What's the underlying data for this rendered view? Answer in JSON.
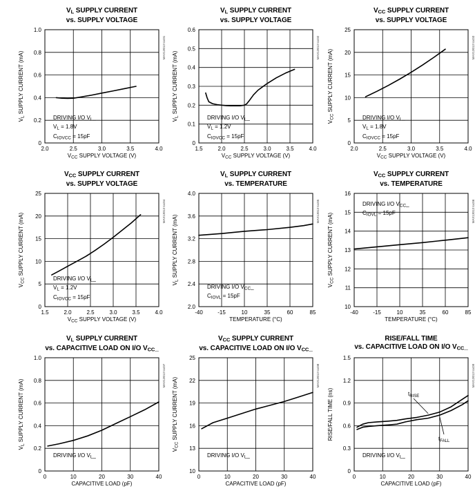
{
  "chart_data": [
    {
      "type": "line",
      "title": [
        "V_L SUPPLY CURRENT",
        "vs. SUPPLY VOLTAGE"
      ],
      "ylabel": "V_L SUPPLY CURRENT (mA)",
      "xlabel": "V_CC SUPPLY VOLTAGE (V)",
      "xlim": [
        2.0,
        4.0
      ],
      "ylim": [
        0,
        1.0
      ],
      "xticks": [
        "2.0",
        "2.5",
        "3.0",
        "3.5",
        "4.0"
      ],
      "yticks": [
        "0",
        "0.2",
        "0.4",
        "0.6",
        "0.8",
        "1.0"
      ],
      "annotation": [
        "DRIVING I/O V_L_",
        "V_L = 1.8V",
        "C_IOVCC = 15pF"
      ],
      "series": [
        {
          "x": [
            2.2,
            2.3,
            2.4,
            2.5,
            2.6,
            2.8,
            3.0,
            3.2,
            3.4,
            3.6
          ],
          "y": [
            0.4,
            0.395,
            0.393,
            0.395,
            0.403,
            0.42,
            0.44,
            0.46,
            0.48,
            0.5
          ],
          "labels": []
        }
      ]
    },
    {
      "type": "line",
      "title": [
        "V_L SUPPLY CURRENT",
        "vs. SUPPLY VOLTAGE"
      ],
      "ylabel": "V_L SUPPLY CURRENT (mA)",
      "xlabel": "V_CC SUPPLY VOLTAGE (V)",
      "xlim": [
        1.5,
        4.0
      ],
      "ylim": [
        0,
        0.6
      ],
      "xticks": [
        "1.5",
        "2.0",
        "2.5",
        "3.0",
        "3.5",
        "4.0"
      ],
      "yticks": [
        "0",
        "0.1",
        "0.2",
        "0.3",
        "0.4",
        "0.5",
        "0.6"
      ],
      "annotation": [
        "DRIVING I/O V_L_",
        "V_L = 1.2V",
        "C_IOVCC = 15pF"
      ],
      "series": [
        {
          "x": [
            1.65,
            1.68,
            1.72,
            1.8,
            1.9,
            2.0,
            2.1,
            2.2,
            2.3,
            2.4,
            2.5,
            2.55,
            2.6,
            2.7,
            2.8,
            3.0,
            3.2,
            3.4,
            3.6
          ],
          "y": [
            0.265,
            0.24,
            0.218,
            0.208,
            0.203,
            0.2,
            0.198,
            0.197,
            0.197,
            0.197,
            0.2,
            0.207,
            0.222,
            0.255,
            0.28,
            0.315,
            0.345,
            0.37,
            0.39
          ],
          "labels": []
        }
      ]
    },
    {
      "type": "line",
      "title": [
        "V_CC SUPPLY CURRENT",
        "vs. SUPPLY VOLTAGE"
      ],
      "ylabel": "V_CC SUPPLY CURRENT (mA)",
      "xlabel": "V_CC SUPPLY VOLTAGE (V)",
      "xlim": [
        2.0,
        4.0
      ],
      "ylim": [
        0,
        25
      ],
      "xticks": [
        "2.0",
        "2.5",
        "3.0",
        "3.5",
        "4.0"
      ],
      "yticks": [
        "0",
        "5",
        "10",
        "15",
        "20",
        "25"
      ],
      "annotation": [
        "DRIVING I/O V_L_",
        "V_L = 1.8V",
        "C_IOVCC = 15pF"
      ],
      "series": [
        {
          "x": [
            2.2,
            2.4,
            2.6,
            2.8,
            3.0,
            3.2,
            3.4,
            3.6
          ],
          "y": [
            10.2,
            11.4,
            12.7,
            14.1,
            15.6,
            17.2,
            18.9,
            20.7
          ],
          "labels": []
        }
      ]
    },
    {
      "type": "line",
      "title": [
        "V_CC SUPPLY CURRENT",
        "vs. SUPPLY VOLTAGE"
      ],
      "ylabel": "V_CC SUPPLY CURRENT (mA)",
      "xlabel": "V_CC SUPPLY VOLTAGE (V)",
      "xlim": [
        1.5,
        4.0
      ],
      "ylim": [
        0,
        25
      ],
      "xticks": [
        "1.5",
        "2.0",
        "2.5",
        "3.0",
        "3.5",
        "4.0"
      ],
      "yticks": [
        "0",
        "5",
        "10",
        "15",
        "20",
        "25"
      ],
      "annotation": [
        "DRIVING I/O V_L_",
        "V_L = 1.2V",
        "C_IOVCC = 15pF"
      ],
      "series": [
        {
          "x": [
            1.65,
            1.8,
            2.0,
            2.2,
            2.4,
            2.6,
            2.8,
            3.0,
            3.2,
            3.4,
            3.6
          ],
          "y": [
            7.0,
            7.8,
            8.9,
            10.0,
            11.1,
            12.4,
            13.8,
            15.3,
            16.9,
            18.5,
            20.3
          ],
          "labels": []
        }
      ]
    },
    {
      "type": "line",
      "title": [
        "V_L SUPPLY CURRENT",
        "vs. TEMPERATURE"
      ],
      "ylabel": "V_L SUPPLY CURRENT (mA)",
      "xlabel": "TEMPERATURE (°C)",
      "xlim": [
        -40,
        85
      ],
      "ylim": [
        2.0,
        4.0
      ],
      "xticks": [
        "-40",
        "-15",
        "10",
        "35",
        "60",
        "85"
      ],
      "yticks": [
        "2.0",
        "2.4",
        "2.8",
        "3.2",
        "3.6",
        "4.0"
      ],
      "annotation": [
        "DRIVING I/O V_CC_",
        "C_IOVL = 15pF"
      ],
      "series": [
        {
          "x": [
            -40,
            -15,
            10,
            35,
            60,
            75,
            85
          ],
          "y": [
            3.26,
            3.29,
            3.33,
            3.36,
            3.4,
            3.43,
            3.46
          ],
          "labels": []
        }
      ]
    },
    {
      "type": "line",
      "title": [
        "V_CC SUPPLY CURRENT",
        "vs. TEMPERATURE"
      ],
      "ylabel": "V_CC SUPPLY CURRENT (mA)",
      "xlabel": "TEMPERATURE (°C)",
      "xlim": [
        -40,
        85
      ],
      "ylim": [
        10,
        16
      ],
      "xticks": [
        "-40",
        "-15",
        "10",
        "35",
        "60",
        "85"
      ],
      "yticks": [
        "10",
        "11",
        "12",
        "13",
        "14",
        "15",
        "16"
      ],
      "annotation": [
        "DRIVING I/O V_CC_",
        "C_IOVL = 15pF"
      ],
      "series": [
        {
          "x": [
            -40,
            -15,
            10,
            35,
            60,
            85
          ],
          "y": [
            13.05,
            13.17,
            13.28,
            13.39,
            13.52,
            13.65
          ],
          "labels": []
        }
      ]
    },
    {
      "type": "line",
      "title": [
        "V_L SUPPLY CURRENT",
        "vs. CAPACITIVE LOAD ON I/O V_CC_"
      ],
      "ylabel": "V_L SUPPLY CURRENT (mA)",
      "xlabel": "CAPACITIVE LOAD (pF)",
      "xlim": [
        0,
        40
      ],
      "ylim": [
        0,
        1.0
      ],
      "xticks": [
        "0",
        "10",
        "20",
        "30",
        "40"
      ],
      "yticks": [
        "0",
        "0.2",
        "0.4",
        "0.6",
        "0.8",
        "1.0"
      ],
      "annotation": [
        "DRIVING I/O V_L_"
      ],
      "series": [
        {
          "x": [
            1,
            5,
            10,
            15,
            20,
            25,
            30,
            35,
            40
          ],
          "y": [
            0.22,
            0.24,
            0.27,
            0.31,
            0.36,
            0.42,
            0.48,
            0.54,
            0.61
          ],
          "labels": []
        }
      ]
    },
    {
      "type": "line",
      "title": [
        "V_CC SUPPLY CURRENT",
        "vs. CAPACITIVE LOAD ON I/O V_CC_"
      ],
      "ylabel": "V_CC SUPPLY CURRENT (mA)",
      "xlabel": "CAPACITIVE LOAD (pF)",
      "xlim": [
        0,
        40
      ],
      "ylim": [
        10,
        25
      ],
      "xticks": [
        "0",
        "10",
        "20",
        "30",
        "40"
      ],
      "yticks": [
        "10",
        "13",
        "16",
        "19",
        "22",
        "25"
      ],
      "annotation": [
        "DRIVING I/O V_L_"
      ],
      "series": [
        {
          "x": [
            1,
            5,
            10,
            15,
            20,
            25,
            30,
            35,
            40
          ],
          "y": [
            15.6,
            16.4,
            17.0,
            17.6,
            18.2,
            18.7,
            19.2,
            19.8,
            20.4
          ],
          "labels": []
        }
      ]
    },
    {
      "type": "line",
      "title": [
        "RISE/FALL TIME",
        "vs. CAPACITIVE LOAD ON I/O V_CC_"
      ],
      "ylabel": "RISE/FALL TIME (ns)",
      "xlabel": "CAPACITIVE LOAD (pF)",
      "xlim": [
        0,
        40
      ],
      "ylim": [
        0,
        1.5
      ],
      "xticks": [
        "0",
        "10",
        "20",
        "30",
        "40"
      ],
      "yticks": [
        "0",
        "0.3",
        "0.6",
        "0.9",
        "1.2",
        "1.5"
      ],
      "annotation": [
        "DRIVING I/O V_L_"
      ],
      "series": [
        {
          "name": "t_RISE",
          "x": [
            1,
            3,
            5,
            8,
            12,
            15,
            18,
            22,
            26,
            30,
            34,
            38,
            40
          ],
          "y": [
            0.58,
            0.62,
            0.64,
            0.65,
            0.66,
            0.67,
            0.69,
            0.71,
            0.74,
            0.78,
            0.85,
            0.95,
            1.0
          ],
          "labels": [
            "t_RISE"
          ]
        },
        {
          "name": "t_FALL",
          "x": [
            1,
            3,
            5,
            8,
            12,
            15,
            18,
            22,
            26,
            30,
            34,
            38,
            40
          ],
          "y": [
            0.55,
            0.58,
            0.59,
            0.6,
            0.61,
            0.62,
            0.65,
            0.68,
            0.7,
            0.74,
            0.8,
            0.88,
            0.93
          ],
          "labels": [
            "t_FALL"
          ]
        }
      ]
    }
  ],
  "chart_codes": [
    "MAX13013 toc01",
    "MAX13013 toc02",
    "MAX13013 toc03",
    "MAX13013 toc04",
    "MAX13013 toc05",
    "MAX13013 toc06",
    "MAX13013 toc07",
    "MAX13013 toc08",
    "MAX13013 toc09"
  ]
}
